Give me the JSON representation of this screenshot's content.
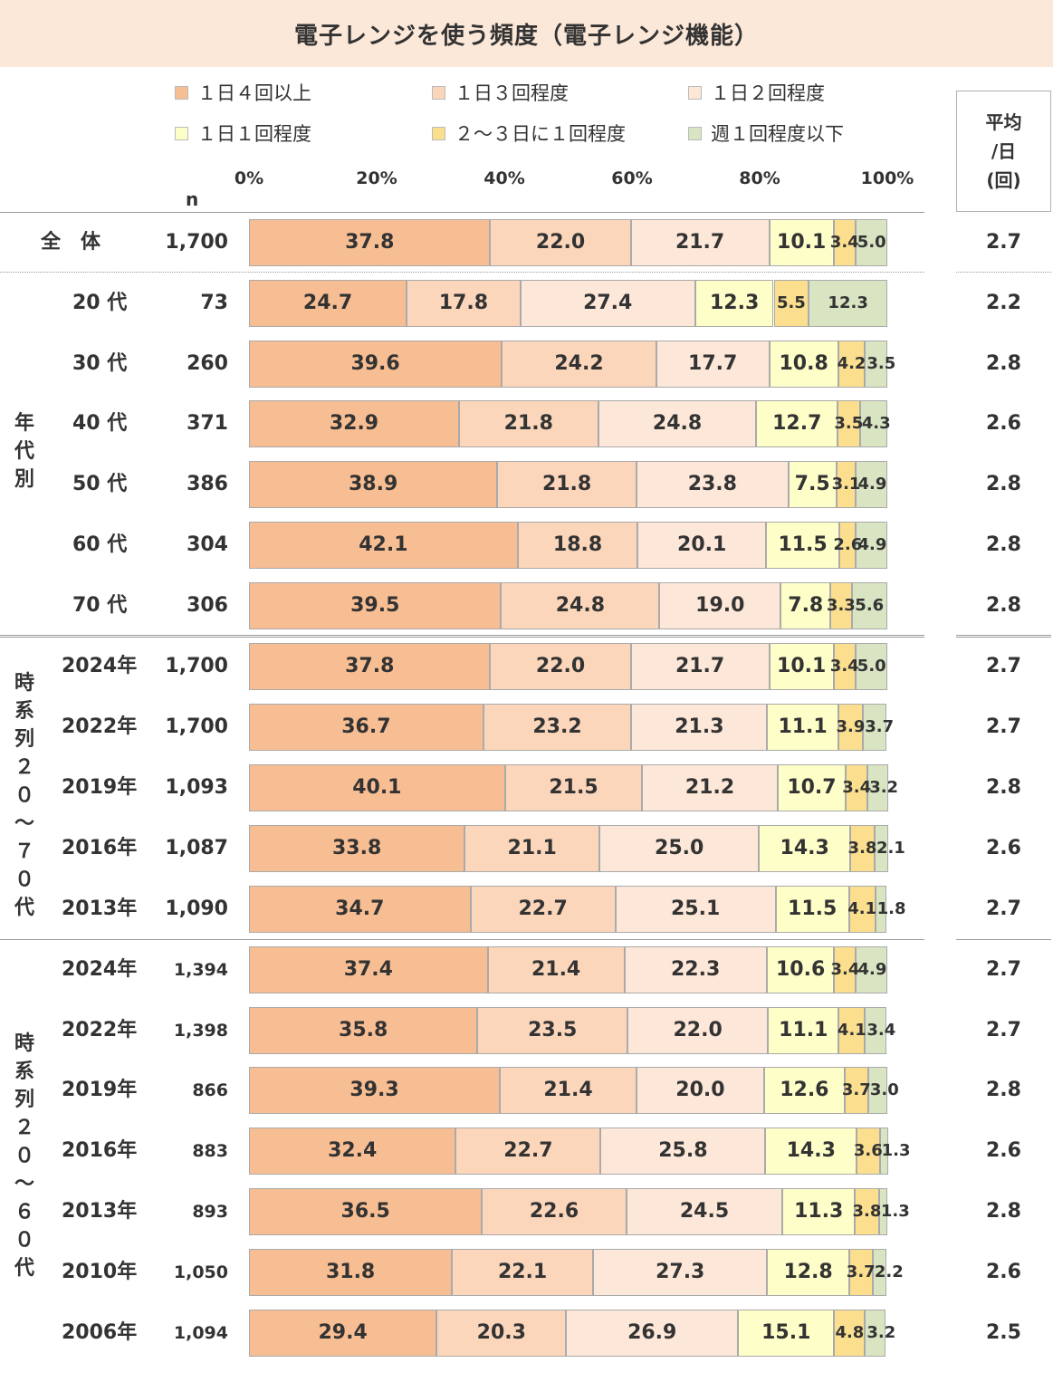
{
  "title": "電子レンジを使う頻度（電子レンジ機能）",
  "legend": [
    {
      "label": "１日４回以上",
      "color": "#f8be93"
    },
    {
      "label": "１日３回程度",
      "color": "#fbd6bb"
    },
    {
      "label": "１日２回程度",
      "color": "#fde7d8"
    },
    {
      "label": "１日１回程度",
      "color": "#fefec8"
    },
    {
      "label": "２～３日に１回程度",
      "color": "#fbdf8f"
    },
    {
      "label": "週１回程度以下",
      "color": "#d9e4c3"
    }
  ],
  "axis_ticks": [
    "0%",
    "20%",
    "40%",
    "60%",
    "80%",
    "100%"
  ],
  "n_header": "n",
  "avg_header": [
    "平均",
    "/日",
    "(回)"
  ],
  "groups": [
    "年\n代\n別",
    "時\n系\n列\n２\n０\n～\n７\n０\n代",
    "時\n系\n列\n２\n０\n～\n６\n０\n代"
  ],
  "chart_data": {
    "type": "bar",
    "orientation": "horizontal-stacked",
    "title": "電子レンジを使う頻度（電子レンジ機能）",
    "xlim": [
      0,
      100
    ],
    "series_names": [
      "１日４回以上",
      "１日３回程度",
      "１日２回程度",
      "１日１回程度",
      "２～３日に１回程度",
      "週１回程度以下"
    ],
    "rows": [
      {
        "label": "全　体",
        "n": "1,700",
        "avg": "2.7",
        "values": [
          37.8,
          22.0,
          21.7,
          10.1,
          3.4,
          5.0
        ]
      },
      {
        "label": "20 代",
        "n": "73",
        "avg": "2.2",
        "values": [
          24.7,
          17.8,
          27.4,
          12.3,
          5.5,
          12.3
        ]
      },
      {
        "label": "30 代",
        "n": "260",
        "avg": "2.8",
        "values": [
          39.6,
          24.2,
          17.7,
          10.8,
          4.2,
          3.5
        ]
      },
      {
        "label": "40 代",
        "n": "371",
        "avg": "2.6",
        "values": [
          32.9,
          21.8,
          24.8,
          12.7,
          3.5,
          4.3
        ]
      },
      {
        "label": "50 代",
        "n": "386",
        "avg": "2.8",
        "values": [
          38.9,
          21.8,
          23.8,
          7.5,
          3.1,
          4.9
        ]
      },
      {
        "label": "60 代",
        "n": "304",
        "avg": "2.8",
        "values": [
          42.1,
          18.8,
          20.1,
          11.5,
          2.6,
          4.9
        ]
      },
      {
        "label": "70 代",
        "n": "306",
        "avg": "2.8",
        "values": [
          39.5,
          24.8,
          19.0,
          7.8,
          3.3,
          5.6
        ]
      },
      {
        "label": "2024年",
        "n": "1,700",
        "avg": "2.7",
        "values": [
          37.8,
          22.0,
          21.7,
          10.1,
          3.4,
          5.0
        ]
      },
      {
        "label": "2022年",
        "n": "1,700",
        "avg": "2.7",
        "values": [
          36.7,
          23.2,
          21.3,
          11.1,
          3.9,
          3.7
        ]
      },
      {
        "label": "2019年",
        "n": "1,093",
        "avg": "2.8",
        "values": [
          40.1,
          21.5,
          21.2,
          10.7,
          3.4,
          3.2
        ]
      },
      {
        "label": "2016年",
        "n": "1,087",
        "avg": "2.6",
        "values": [
          33.8,
          21.1,
          25.0,
          14.3,
          3.8,
          2.1
        ]
      },
      {
        "label": "2013年",
        "n": "1,090",
        "avg": "2.7",
        "values": [
          34.7,
          22.7,
          25.1,
          11.5,
          4.1,
          1.8
        ]
      },
      {
        "label": "2024年",
        "n": "1,394",
        "avg": "2.7",
        "values": [
          37.4,
          21.4,
          22.3,
          10.6,
          3.4,
          4.9
        ]
      },
      {
        "label": "2022年",
        "n": "1,398",
        "avg": "2.7",
        "values": [
          35.8,
          23.5,
          22.0,
          11.1,
          4.1,
          3.4
        ]
      },
      {
        "label": "2019年",
        "n": "866",
        "avg": "2.8",
        "values": [
          39.3,
          21.4,
          20.0,
          12.6,
          3.7,
          3.0
        ]
      },
      {
        "label": "2016年",
        "n": "883",
        "avg": "2.6",
        "values": [
          32.4,
          22.7,
          25.8,
          14.3,
          3.6,
          1.3
        ]
      },
      {
        "label": "2013年",
        "n": "893",
        "avg": "2.8",
        "values": [
          36.5,
          22.6,
          24.5,
          11.3,
          3.8,
          1.3
        ]
      },
      {
        "label": "2010年",
        "n": "1,050",
        "avg": "2.6",
        "values": [
          31.8,
          22.1,
          27.3,
          12.8,
          3.7,
          2.2
        ]
      },
      {
        "label": "2006年",
        "n": "1,094",
        "avg": "2.5",
        "values": [
          29.4,
          20.3,
          26.9,
          15.1,
          4.8,
          3.2
        ]
      }
    ]
  }
}
